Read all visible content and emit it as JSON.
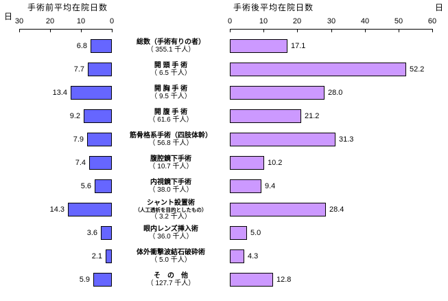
{
  "chart_data": {
    "type": "bar",
    "layout": "bilateral-horizontal",
    "grid": false,
    "legend": "none",
    "categories": [
      {
        "name": "総数（手術有りの者）",
        "count": "（ 355.1 千人）"
      },
      {
        "name": "開 頭 手 術",
        "count": "（ 6.5 千人）"
      },
      {
        "name": "開 胸 手 術",
        "count": "（ 9.5 千人）"
      },
      {
        "name": "開 腹 手 術",
        "count": "（ 61.6 千人）"
      },
      {
        "name": "筋骨格系手術（四肢体幹）",
        "count": "（ 56.8 千人）"
      },
      {
        "name": "腹腔鏡下手術",
        "count": "（ 10.7 千人）"
      },
      {
        "name": "内視鏡下手術",
        "count": "（ 38.0 千人）"
      },
      {
        "name": "シャント設置術",
        "sub": "（人工透析を目的としたもの）",
        "count": "（ 3.2 千人）"
      },
      {
        "name": "眼内レンズ挿入術",
        "count": "（ 36.0 千人）"
      },
      {
        "name": "体外衝撃波結石破砕術",
        "count": "（ 5.0 千人）"
      },
      {
        "name": "そ　の　他",
        "count": "（ 127.7 千人）"
      }
    ],
    "series": [
      {
        "name": "手術前平均在院日数",
        "side": "left",
        "unit": "日",
        "axis_range": [
          0,
          30
        ],
        "axis_ticks": [
          30,
          20,
          10,
          0
        ],
        "color": "#6666ff",
        "values": [
          6.8,
          7.7,
          13.4,
          9.2,
          7.9,
          7.4,
          5.6,
          14.3,
          3.6,
          2.1,
          5.9
        ]
      },
      {
        "name": "手術後平均在院日数",
        "side": "right",
        "unit": "日",
        "axis_range": [
          0,
          60
        ],
        "axis_ticks": [
          0,
          10,
          20,
          30,
          40,
          50,
          60
        ],
        "color": "#cc99ff",
        "values": [
          17.1,
          52.2,
          28.0,
          21.2,
          31.3,
          10.2,
          9.4,
          28.4,
          5.0,
          4.3,
          12.8
        ]
      }
    ]
  }
}
